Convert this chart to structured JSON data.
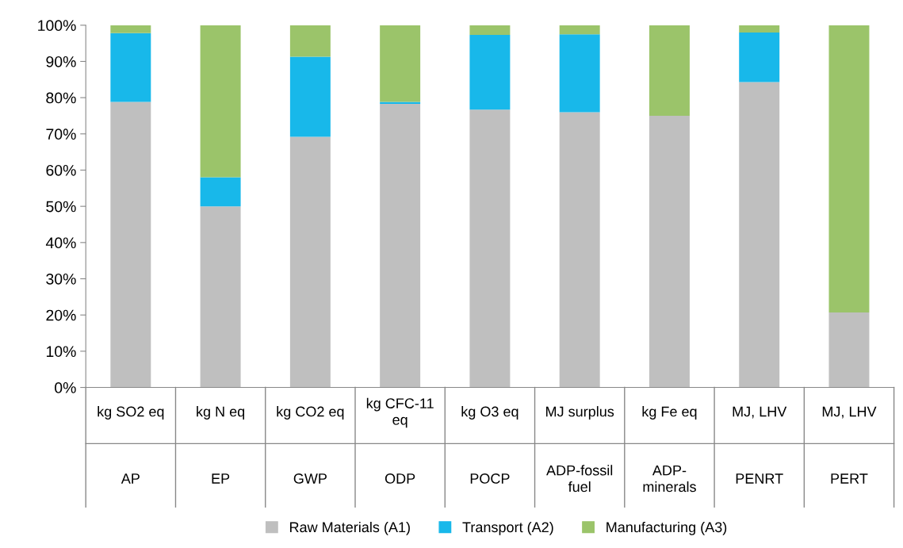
{
  "chart_data": {
    "type": "bar",
    "stacked": true,
    "categories": [
      "kg SO2 eq",
      "kg N eq",
      "kg CO2 eq",
      "kg CFC-11\neq",
      "kg O3 eq",
      "MJ surplus",
      "kg Fe eq",
      "MJ, LHV",
      "MJ, LHV"
    ],
    "annotations": [
      "AP",
      "EP",
      "GWP",
      "ODP",
      "POCP",
      "ADP-fossil\nfuel",
      "ADP-\nminerals",
      "PENRT",
      "PERT"
    ],
    "series": [
      {
        "name": "Raw Materials (A1)",
        "color": "#bfbfbf",
        "values": [
          78.8,
          50,
          69.2,
          78.3,
          76.7,
          76,
          75,
          84.3,
          20.7
        ]
      },
      {
        "name": "Transport (A2)",
        "color": "#18b8ea",
        "values": [
          19.0,
          8,
          22.1,
          0.5,
          20.6,
          21.5,
          0,
          13.7,
          0
        ]
      },
      {
        "name": "Manufacturing (A3)",
        "color": "#9bc46a",
        "values": [
          2.2,
          42,
          8.7,
          21.2,
          2.7,
          2.5,
          25,
          2,
          79.3
        ]
      }
    ],
    "ylim": [
      0,
      100
    ],
    "yticks": [
      {
        "value": 0,
        "label": "0%"
      },
      {
        "value": 10,
        "label": "10%"
      },
      {
        "value": 20,
        "label": "20%"
      },
      {
        "value": 30,
        "label": "30%"
      },
      {
        "value": 40,
        "label": "40%"
      },
      {
        "value": 50,
        "label": "50%"
      },
      {
        "value": 60,
        "label": "60%"
      },
      {
        "value": 70,
        "label": "70%"
      },
      {
        "value": 80,
        "label": "80%"
      },
      {
        "value": 90,
        "label": "90%"
      },
      {
        "value": 100,
        "label": "100%"
      }
    ],
    "grid": false,
    "legend": "bottom"
  }
}
